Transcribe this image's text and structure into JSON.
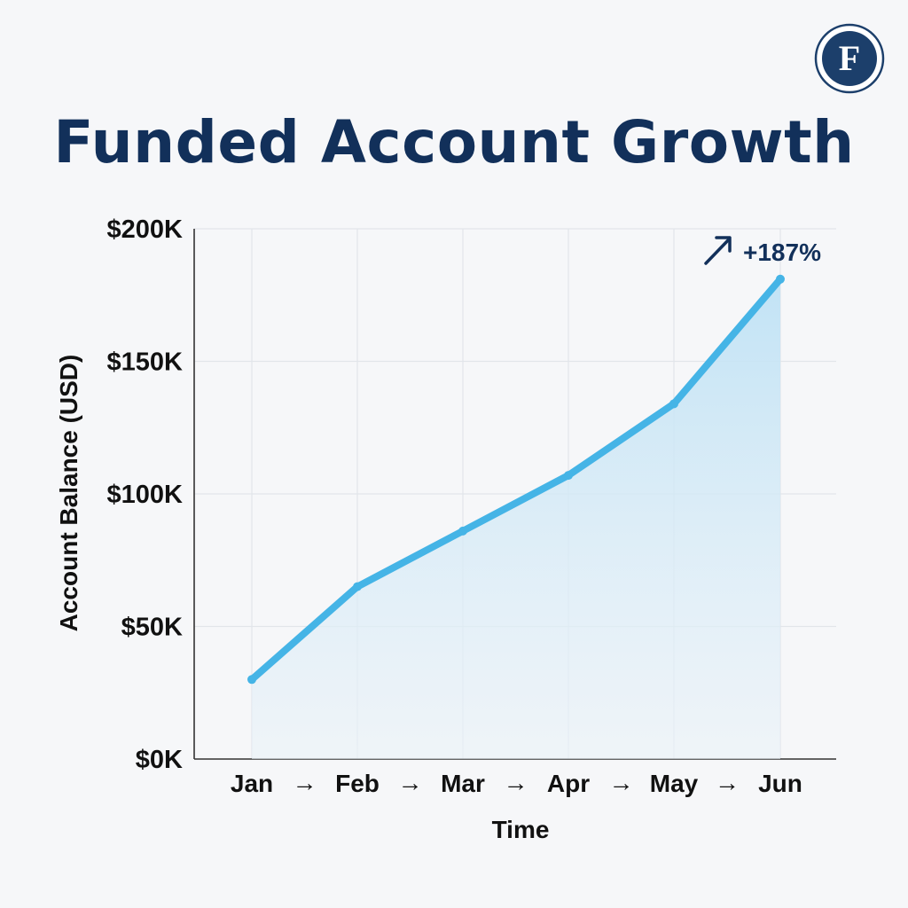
{
  "logo": {
    "letter": "F",
    "colors": {
      "ring": "#1c3f6b",
      "inner": "#1c3f6b",
      "letter": "#ffffff"
    }
  },
  "chart_data": {
    "type": "area",
    "title": "Funded Account Growth",
    "xlabel": "Time",
    "ylabel": "Account Balance (USD)",
    "categories": [
      "Jan",
      "Feb",
      "Mar",
      "Apr",
      "May",
      "Jun"
    ],
    "separator": "→",
    "series": [
      {
        "values": [
          30000,
          65000,
          86000,
          107000,
          134000,
          181000
        ]
      }
    ],
    "ylim": [
      0,
      200000
    ],
    "y_ticks": [
      0,
      50000,
      100000,
      150000,
      200000
    ],
    "y_tick_labels": [
      "$0K",
      "$50K",
      "$100K",
      "$150K",
      "$200K"
    ],
    "grid": true,
    "annotation": {
      "text": "+187%",
      "icon": "arrow-up-right-icon",
      "at_category": "Jun"
    },
    "colors": {
      "line": "#45b4e6",
      "fill": "#cfe8f6",
      "grid": "#e2e5ea",
      "axis": "#333333",
      "title": "#12305a"
    }
  }
}
